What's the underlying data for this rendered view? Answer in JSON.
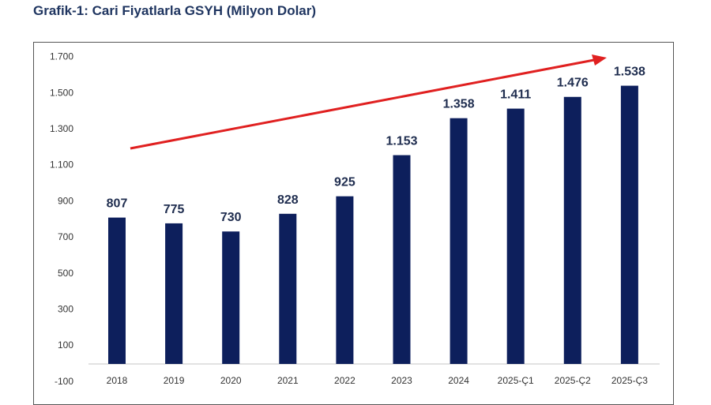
{
  "chart_data": {
    "type": "bar",
    "title": "Grafik-1: Cari Fiyatlarla GSYH (Milyon Dolar)",
    "categories": [
      "2018",
      "2019",
      "2020",
      "2021",
      "2022",
      "2023",
      "2024",
      "2025-Ç1",
      "2025-Ç2",
      "2025-Ç3"
    ],
    "values": [
      807,
      775,
      730,
      828,
      925,
      1153,
      1358,
      1411,
      1476,
      1538
    ],
    "value_labels": [
      "807",
      "775",
      "730",
      "828",
      "925",
      "1.153",
      "1.358",
      "1.411",
      "1.476",
      "1.538"
    ],
    "ylim": [
      -100,
      1700
    ],
    "yticks": [
      -100,
      100,
      300,
      500,
      700,
      900,
      1100,
      1300,
      1500,
      1700
    ],
    "ytick_labels": [
      "-100",
      "100",
      "300",
      "500",
      "700",
      "900",
      "1.100",
      "1.300",
      "1.500",
      "1.700"
    ],
    "xlabel": "",
    "ylabel": "",
    "grid": false,
    "legend": "none",
    "annotations": [
      {
        "type": "arrow",
        "description": "upward trend arrow",
        "color": "#e02020"
      }
    ],
    "bar_color": "#0d1f5c"
  }
}
